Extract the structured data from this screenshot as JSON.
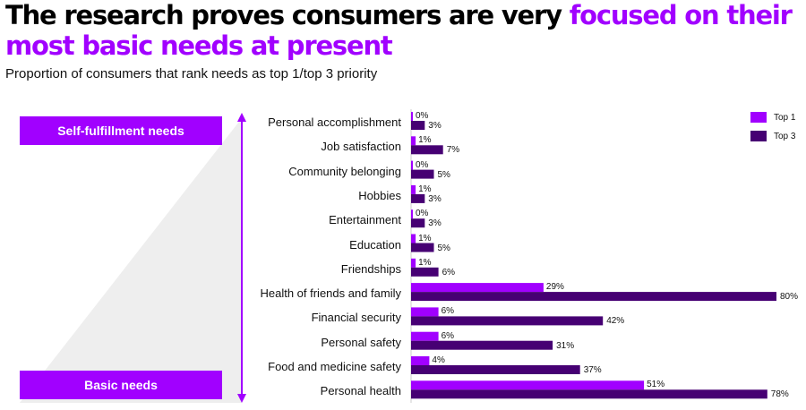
{
  "header": {
    "title_part1": "The research proves consumers are very ",
    "title_part2": "focused on their most basic needs at present",
    "subtitle": "Proportion of consumers that rank needs as top 1/top 3 priority"
  },
  "pyramid": {
    "top_label": "Self-fulfillment needs",
    "bottom_label": "Basic needs"
  },
  "colors": {
    "top1": "#a100ff",
    "top3": "#460073",
    "axis": "#a100ff",
    "pyramid": "#eeeeee"
  },
  "chart_data": {
    "type": "bar",
    "orientation": "horizontal",
    "categories": [
      "Personal accomplishment",
      "Job satisfaction",
      "Community belonging",
      "Hobbies",
      "Entertainment",
      "Education",
      "Friendships",
      "Health of friends and family",
      "Financial security",
      "Personal safety",
      "Food and medicine safety",
      "Personal health"
    ],
    "series": [
      {
        "name": "Top 1",
        "values": [
          0,
          1,
          0,
          1,
          0,
          1,
          1,
          29,
          6,
          6,
          4,
          51
        ]
      },
      {
        "name": "Top 3",
        "values": [
          3,
          7,
          5,
          3,
          3,
          5,
          6,
          80,
          42,
          31,
          37,
          78
        ]
      }
    ],
    "xlim": [
      0,
      80
    ],
    "legend": "top-right",
    "grid": false,
    "value_suffix": "%"
  }
}
